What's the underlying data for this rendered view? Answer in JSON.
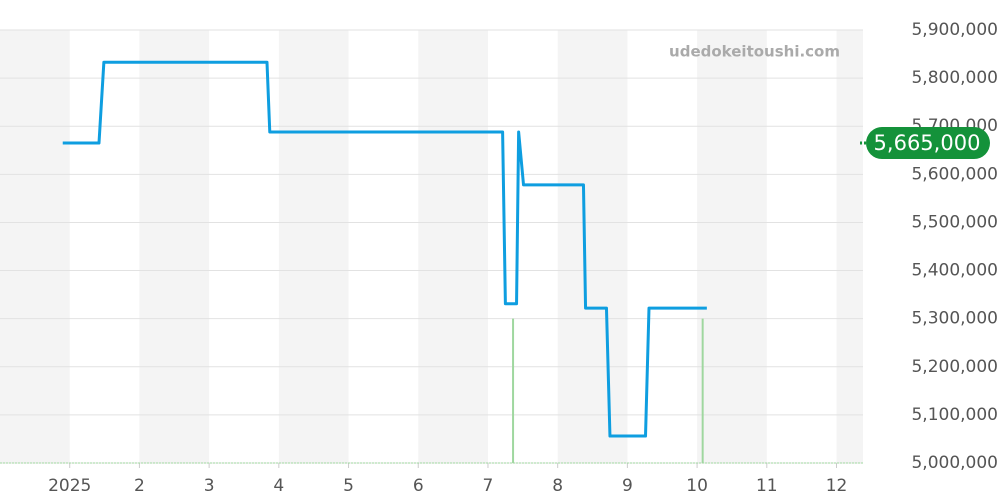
{
  "chart_data": {
    "type": "line",
    "watermark": "udedokeitoushi.com",
    "xlim": [
      0,
      12.38
    ],
    "xticks": [
      {
        "value": 1,
        "label": "2025"
      },
      2,
      3,
      4,
      5,
      6,
      7,
      8,
      9,
      10,
      11,
      12
    ],
    "ylim": [
      5000000,
      5900000
    ],
    "yticks": [
      {
        "value": 5000000,
        "label": "5,000,000"
      },
      {
        "value": 5100000,
        "label": "5,100,000"
      },
      {
        "value": 5200000,
        "label": "5,200,000"
      },
      {
        "value": 5300000,
        "label": "5,300,000"
      },
      {
        "value": 5400000,
        "label": "5,400,000"
      },
      {
        "value": 5500000,
        "label": "5,500,000"
      },
      {
        "value": 5600000,
        "label": "5,600,000"
      },
      {
        "value": 5700000,
        "label": "5,700,000"
      },
      {
        "value": 5800000,
        "label": "5,800,000"
      },
      {
        "value": 5900000,
        "label": "5,900,000"
      }
    ],
    "grid": true,
    "series": [
      {
        "color": "#0e9ee0",
        "x": [
          0.9,
          1.42,
          1.49,
          3.83,
          3.87,
          7.21,
          7.25,
          7.41,
          7.44,
          7.51,
          8.37,
          8.4,
          8.7,
          8.75,
          9.26,
          9.31,
          10.14
        ],
        "values": [
          5665000,
          5665000,
          5833000,
          5833000,
          5688000,
          5688000,
          5331000,
          5331000,
          5688000,
          5578000,
          5578000,
          5322000,
          5322000,
          5056000,
          5056000,
          5322000,
          5322000
        ]
      }
    ],
    "bars": {
      "color": "#9fd79f",
      "x": [
        7.36,
        10.08
      ],
      "values": [
        5300000,
        5300000
      ]
    },
    "current_price": {
      "value": 5665000,
      "label": "5,665,000",
      "color": "#14923a"
    }
  }
}
